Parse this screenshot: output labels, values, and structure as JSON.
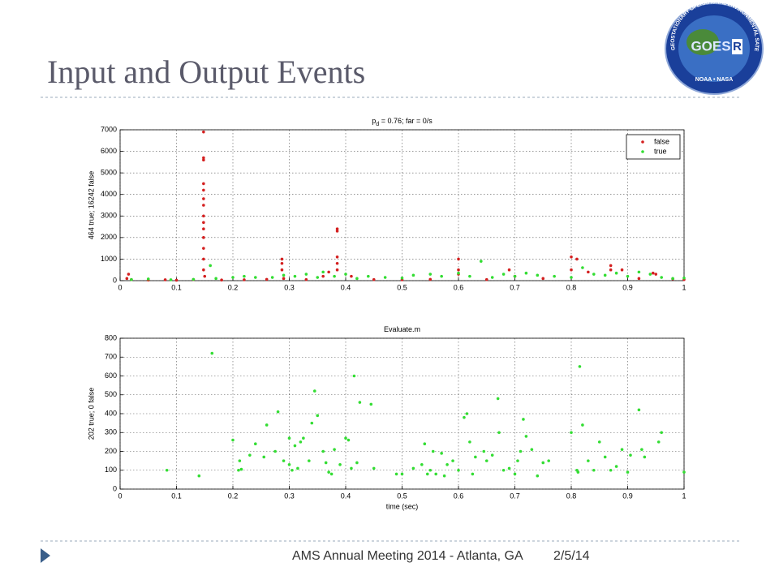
{
  "slide": {
    "title": "Input and Output Events",
    "footer": "AMS Annual Meeting 2014 - Atlanta, GA",
    "date": "2/5/14"
  },
  "logo": {
    "ring_text": "GEOSTATIONARY OPERATIONAL ENVIRONMENTAL SATELLITE R-SERIES",
    "name": "GOES",
    "letter": "R",
    "agencies": "NOAA • NASA"
  },
  "chart_data": [
    {
      "type": "scatter",
      "title_parts": [
        "p",
        "d",
        " = 0.76; far = 0/s"
      ],
      "y_label": "464 true; 16242 false",
      "xlim": [
        0,
        1
      ],
      "xticks": [
        0,
        0.1,
        0.2,
        0.3,
        0.4,
        0.5,
        0.6,
        0.7,
        0.8,
        0.9,
        1
      ],
      "ylim": [
        0,
        7000
      ],
      "yticks": [
        0,
        1000,
        2000,
        3000,
        4000,
        5000,
        6000,
        7000
      ],
      "grid": true,
      "legend": "upper-right",
      "series": [
        {
          "name": "false",
          "color": "#d42020",
          "x": [
            0.012,
            0.015,
            0.02,
            0.05,
            0.08,
            0.1,
            0.13,
            0.148,
            0.148,
            0.148,
            0.148,
            0.148,
            0.148,
            0.148,
            0.148,
            0.148,
            0.148,
            0.148,
            0.148,
            0.148,
            0.148,
            0.15,
            0.18,
            0.22,
            0.26,
            0.287,
            0.287,
            0.287,
            0.29,
            0.33,
            0.36,
            0.385,
            0.385,
            0.385,
            0.385,
            0.385,
            0.37,
            0.41,
            0.45,
            0.5,
            0.55,
            0.6,
            0.6,
            0.6,
            0.65,
            0.69,
            0.7,
            0.75,
            0.8,
            0.81,
            0.8,
            0.83,
            0.87,
            0.87,
            0.89,
            0.92,
            0.945,
            0.95,
            0.98,
            1.0
          ],
          "values": [
            100,
            300,
            50,
            30,
            40,
            20,
            50,
            6900,
            5700,
            5600,
            4500,
            4200,
            3800,
            3500,
            3000,
            2700,
            2400,
            2000,
            1500,
            1000,
            500,
            200,
            30,
            40,
            60,
            1000,
            800,
            500,
            100,
            50,
            200,
            2400,
            2300,
            1100,
            800,
            500,
            400,
            200,
            50,
            40,
            60,
            1000,
            500,
            300,
            50,
            500,
            200,
            100,
            1100,
            1000,
            500,
            400,
            700,
            500,
            500,
            100,
            350,
            300,
            80,
            50
          ]
        },
        {
          "name": "true",
          "color": "#33dd33",
          "x": [
            0.02,
            0.05,
            0.09,
            0.13,
            0.16,
            0.17,
            0.2,
            0.22,
            0.24,
            0.27,
            0.29,
            0.31,
            0.33,
            0.35,
            0.36,
            0.38,
            0.4,
            0.42,
            0.44,
            0.47,
            0.5,
            0.52,
            0.55,
            0.57,
            0.6,
            0.62,
            0.64,
            0.66,
            0.68,
            0.7,
            0.72,
            0.74,
            0.77,
            0.8,
            0.82,
            0.84,
            0.86,
            0.88,
            0.9,
            0.92,
            0.94,
            0.96,
            0.98,
            1.0
          ],
          "values": [
            50,
            80,
            40,
            60,
            700,
            100,
            150,
            200,
            150,
            150,
            250,
            200,
            300,
            150,
            400,
            200,
            300,
            100,
            200,
            150,
            120,
            250,
            300,
            200,
            350,
            200,
            900,
            150,
            300,
            200,
            350,
            250,
            200,
            150,
            600,
            300,
            250,
            350,
            200,
            400,
            300,
            150,
            100,
            120
          ]
        }
      ]
    },
    {
      "type": "scatter",
      "title_parts": [
        "Evaluate.m"
      ],
      "y_label": "202 true; 0 false",
      "x_label": "time (sec)",
      "xlim": [
        0,
        1
      ],
      "xticks": [
        0,
        0.1,
        0.2,
        0.3,
        0.4,
        0.5,
        0.6,
        0.7,
        0.8,
        0.9,
        1
      ],
      "ylim": [
        0,
        800
      ],
      "yticks": [
        0,
        100,
        200,
        300,
        400,
        500,
        600,
        700,
        800
      ],
      "grid": true,
      "series": [
        {
          "color": "#33dd33",
          "x": [
            0.083,
            0.14,
            0.163,
            0.2,
            0.21,
            0.212,
            0.215,
            0.23,
            0.24,
            0.255,
            0.26,
            0.275,
            0.28,
            0.29,
            0.3,
            0.3,
            0.305,
            0.31,
            0.315,
            0.32,
            0.325,
            0.335,
            0.34,
            0.345,
            0.35,
            0.36,
            0.365,
            0.37,
            0.375,
            0.38,
            0.39,
            0.4,
            0.405,
            0.41,
            0.415,
            0.42,
            0.425,
            0.445,
            0.45,
            0.49,
            0.5,
            0.52,
            0.535,
            0.54,
            0.545,
            0.55,
            0.555,
            0.56,
            0.57,
            0.575,
            0.58,
            0.59,
            0.6,
            0.61,
            0.615,
            0.62,
            0.625,
            0.63,
            0.645,
            0.65,
            0.66,
            0.67,
            0.672,
            0.68,
            0.69,
            0.7,
            0.705,
            0.71,
            0.715,
            0.72,
            0.73,
            0.74,
            0.75,
            0.76,
            0.8,
            0.81,
            0.812,
            0.815,
            0.82,
            0.83,
            0.84,
            0.85,
            0.86,
            0.87,
            0.88,
            0.89,
            0.9,
            0.905,
            0.92,
            0.925,
            0.93,
            0.955,
            0.96,
            1.0
          ],
          "values": [
            100,
            70,
            720,
            260,
            100,
            150,
            105,
            180,
            240,
            170,
            340,
            200,
            410,
            150,
            130,
            270,
            100,
            230,
            110,
            250,
            270,
            150,
            350,
            520,
            390,
            200,
            140,
            90,
            80,
            210,
            130,
            270,
            260,
            110,
            600,
            140,
            460,
            450,
            110,
            80,
            80,
            110,
            130,
            240,
            80,
            100,
            200,
            80,
            190,
            70,
            130,
            150,
            100,
            380,
            400,
            250,
            80,
            170,
            200,
            150,
            180,
            480,
            300,
            100,
            110,
            80,
            150,
            200,
            370,
            280,
            210,
            70,
            140,
            150,
            300,
            100,
            90,
            650,
            340,
            150,
            100,
            250,
            170,
            100,
            120,
            210,
            90,
            180,
            420,
            210,
            170,
            250,
            300,
            90
          ]
        }
      ]
    }
  ]
}
